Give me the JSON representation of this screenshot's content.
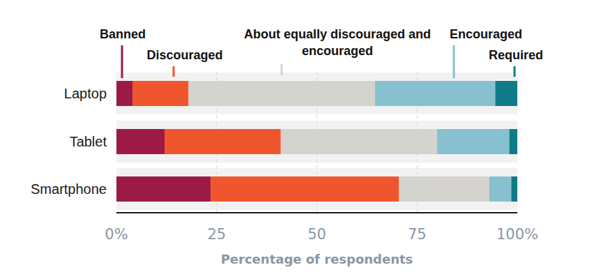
{
  "chart_data": {
    "type": "bar",
    "orientation": "horizontal",
    "stacked": true,
    "x_label": "Percentage of respondents",
    "categories": [
      "Laptop",
      "Tablet",
      "Smartphone"
    ],
    "series": [
      {
        "name": "Banned",
        "color": "#9b1b45",
        "values": [
          4,
          12,
          23.5
        ]
      },
      {
        "name": "Discouraged",
        "color": "#f0562e",
        "values": [
          14,
          29,
          47
        ]
      },
      {
        "name": "About equally discouraged and encouraged",
        "color": "#d4d3ce",
        "values": [
          46.5,
          39,
          22.5
        ]
      },
      {
        "name": "Encouraged",
        "color": "#87c0cf",
        "values": [
          30,
          18,
          5.5
        ]
      },
      {
        "name": "Required",
        "color": "#0f7b86",
        "values": [
          5.5,
          2,
          1.5
        ]
      }
    ],
    "xlim": [
      0,
      100
    ],
    "xticks": [
      {
        "value": 0,
        "label": "0%"
      },
      25,
      50,
      75,
      {
        "value": 100,
        "label": "100%"
      }
    ],
    "grid": true,
    "legend": "top"
  }
}
